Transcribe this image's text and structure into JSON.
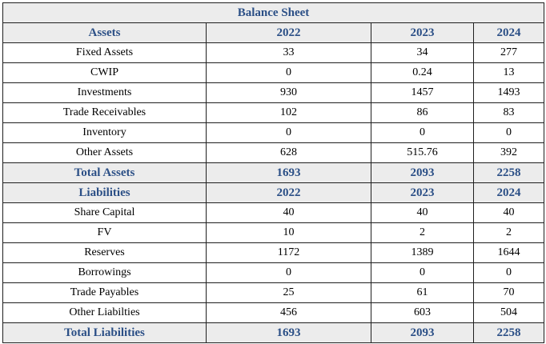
{
  "title": "Balance Sheet",
  "assets": {
    "header": [
      "Assets",
      "2022",
      "2023",
      "2024"
    ],
    "rows": [
      [
        "Fixed Assets",
        "33",
        "34",
        "277"
      ],
      [
        "CWIP",
        "0",
        "0.24",
        "13"
      ],
      [
        "Investments",
        "930",
        "1457",
        "1493"
      ],
      [
        "Trade Receivables",
        "102",
        "86",
        "83"
      ],
      [
        "Inventory",
        "0",
        "0",
        "0"
      ],
      [
        "Other Assets",
        "628",
        "515.76",
        "392"
      ]
    ],
    "total": [
      "Total Assets",
      "1693",
      "2093",
      "2258"
    ]
  },
  "liabilities": {
    "header": [
      "Liabilities",
      "2022",
      "2023",
      "2024"
    ],
    "rows": [
      [
        "Share Capital",
        "40",
        "40",
        "40"
      ],
      [
        "FV",
        "10",
        "2",
        "2"
      ],
      [
        "Reserves",
        "1172",
        "1389",
        "1644"
      ],
      [
        "Borrowings",
        "0",
        "0",
        "0"
      ],
      [
        "Trade Payables",
        "25",
        "61",
        "70"
      ],
      [
        "Other Liabilties",
        "456",
        "603",
        "504"
      ]
    ],
    "total": [
      "Total Liabilities",
      "1693",
      "2093",
      "2258"
    ]
  },
  "colors": {
    "header_text": "#2b4f86",
    "header_bg": "#ececec",
    "border": "#1f1f1f"
  }
}
